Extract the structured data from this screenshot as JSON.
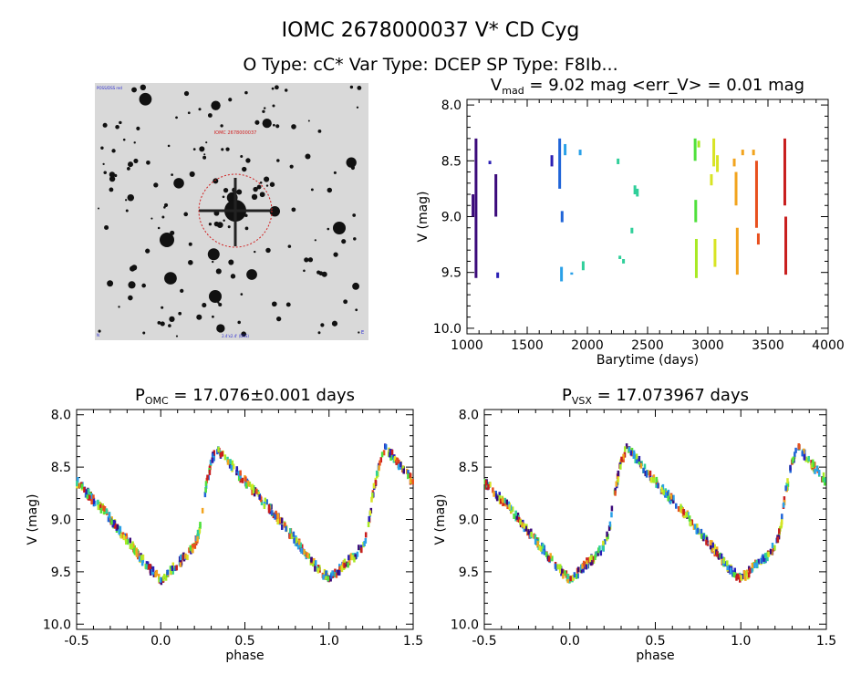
{
  "header": {
    "title": "IOMC 2678000037   V* CD Cyg",
    "subtitle": "O Type: cC*  Var Type: DCEP  SP Type: F8Ib..."
  },
  "finder": {
    "label_top_left": "POSS/DSS red",
    "label_target": "IOMC 2678000037",
    "label_bottom_left": "N",
    "label_bottom_center": "2.4'x2.4' (DSS)",
    "label_bottom_right": "E"
  },
  "colors": {
    "palette": [
      "#3b0a7a",
      "#2a1fb4",
      "#1f64d8",
      "#2aa0e8",
      "#30cf9a",
      "#4fe03c",
      "#a8ea24",
      "#d8e424",
      "#f2a41e",
      "#e8501e",
      "#c81e1e"
    ],
    "circle": "#d02020"
  },
  "chart_data": [
    {
      "type": "scatter",
      "id": "timeseries",
      "title_main": "V",
      "title_sub": "mad",
      "title_rest": " = 9.02 mag <err_V> = 0.01 mag",
      "xlabel": "Barytime (days)",
      "ylabel": "V (mag)",
      "xlim": [
        1000,
        4000
      ],
      "ylim": [
        10.05,
        7.95
      ],
      "y_inverted": true,
      "xticks": [
        1000,
        1500,
        2000,
        2500,
        3000,
        3500,
        4000
      ],
      "yticks": [
        8.0,
        8.5,
        9.0,
        9.5,
        10.0
      ],
      "segments": [
        {
          "x": 1050,
          "y1": 8.8,
          "y2": 9.0,
          "c": 0
        },
        {
          "x": 1075,
          "y1": 8.3,
          "y2": 9.55,
          "c": 0
        },
        {
          "x": 1190,
          "y1": 8.5,
          "y2": 8.53,
          "c": 1
        },
        {
          "x": 1240,
          "y1": 8.62,
          "y2": 9.0,
          "c": 0
        },
        {
          "x": 1255,
          "y1": 9.5,
          "y2": 9.55,
          "c": 1
        },
        {
          "x": 1705,
          "y1": 8.45,
          "y2": 8.55,
          "c": 1
        },
        {
          "x": 1770,
          "y1": 8.3,
          "y2": 8.75,
          "c": 2
        },
        {
          "x": 1785,
          "y1": 9.45,
          "y2": 9.58,
          "c": 3
        },
        {
          "x": 1790,
          "y1": 8.95,
          "y2": 9.05,
          "c": 2
        },
        {
          "x": 1815,
          "y1": 8.35,
          "y2": 8.45,
          "c": 3
        },
        {
          "x": 1870,
          "y1": 9.5,
          "y2": 9.52,
          "c": 3
        },
        {
          "x": 1940,
          "y1": 8.4,
          "y2": 8.45,
          "c": 3
        },
        {
          "x": 1965,
          "y1": 9.4,
          "y2": 9.48,
          "c": 4
        },
        {
          "x": 2255,
          "y1": 8.48,
          "y2": 8.53,
          "c": 4
        },
        {
          "x": 2270,
          "y1": 9.35,
          "y2": 9.38,
          "c": 4
        },
        {
          "x": 2300,
          "y1": 9.38,
          "y2": 9.42,
          "c": 4
        },
        {
          "x": 2370,
          "y1": 9.1,
          "y2": 9.15,
          "c": 4
        },
        {
          "x": 2395,
          "y1": 8.72,
          "y2": 8.8,
          "c": 4
        },
        {
          "x": 2415,
          "y1": 8.75,
          "y2": 8.82,
          "c": 4
        },
        {
          "x": 2895,
          "y1": 8.3,
          "y2": 8.5,
          "c": 5
        },
        {
          "x": 2900,
          "y1": 8.85,
          "y2": 9.05,
          "c": 5
        },
        {
          "x": 2905,
          "y1": 9.2,
          "y2": 9.55,
          "c": 6
        },
        {
          "x": 2925,
          "y1": 8.32,
          "y2": 8.38,
          "c": 6
        },
        {
          "x": 3030,
          "y1": 8.62,
          "y2": 8.72,
          "c": 7
        },
        {
          "x": 3050,
          "y1": 8.3,
          "y2": 8.55,
          "c": 7
        },
        {
          "x": 3060,
          "y1": 9.2,
          "y2": 9.45,
          "c": 7
        },
        {
          "x": 3080,
          "y1": 8.45,
          "y2": 8.6,
          "c": 7
        },
        {
          "x": 3220,
          "y1": 8.48,
          "y2": 8.55,
          "c": 8
        },
        {
          "x": 3235,
          "y1": 8.6,
          "y2": 8.9,
          "c": 8
        },
        {
          "x": 3245,
          "y1": 9.1,
          "y2": 9.52,
          "c": 8
        },
        {
          "x": 3290,
          "y1": 8.4,
          "y2": 8.45,
          "c": 8
        },
        {
          "x": 3380,
          "y1": 8.4,
          "y2": 8.45,
          "c": 8
        },
        {
          "x": 3405,
          "y1": 8.5,
          "y2": 9.1,
          "c": 9
        },
        {
          "x": 3420,
          "y1": 9.15,
          "y2": 9.25,
          "c": 9
        },
        {
          "x": 3640,
          "y1": 8.3,
          "y2": 8.9,
          "c": 10
        },
        {
          "x": 3648,
          "y1": 9.0,
          "y2": 9.52,
          "c": 10
        }
      ]
    },
    {
      "type": "scatter",
      "id": "phase_omc",
      "title_main": "P",
      "title_sub": "OMC",
      "title_rest": " = 17.076±0.001 days",
      "xlabel": "phase",
      "ylabel": "V (mag)",
      "xlim": [
        -0.5,
        1.5
      ],
      "ylim": [
        10.05,
        7.95
      ],
      "y_inverted": true,
      "xticks": [
        -0.5,
        0.0,
        0.5,
        1.0,
        1.5
      ],
      "yticks": [
        8.0,
        8.5,
        9.0,
        9.5,
        10.0
      ],
      "light_curve": {
        "phase": [
          0.0,
          0.05,
          0.1,
          0.15,
          0.2,
          0.23,
          0.26,
          0.3,
          0.33,
          0.38,
          0.45,
          0.55,
          0.65,
          0.75,
          0.85,
          0.92,
          1.0
        ],
        "mag": [
          9.57,
          9.5,
          9.42,
          9.35,
          9.25,
          9.1,
          8.75,
          8.45,
          8.32,
          8.4,
          8.55,
          8.73,
          8.9,
          9.1,
          9.3,
          9.45,
          9.57
        ]
      }
    },
    {
      "type": "scatter",
      "id": "phase_vsx",
      "title_main": "P",
      "title_sub": "VSX",
      "title_rest": " = 17.073967 days",
      "xlabel": "phase",
      "ylabel": "V (mag)",
      "xlim": [
        -0.5,
        1.5
      ],
      "ylim": [
        10.05,
        7.95
      ],
      "y_inverted": true,
      "xticks": [
        -0.5,
        0.0,
        0.5,
        1.0,
        1.5
      ],
      "yticks": [
        8.0,
        8.5,
        9.0,
        9.5,
        10.0
      ],
      "light_curve": {
        "phase": [
          0.0,
          0.05,
          0.1,
          0.15,
          0.2,
          0.23,
          0.26,
          0.3,
          0.33,
          0.38,
          0.45,
          0.55,
          0.65,
          0.75,
          0.85,
          0.92,
          1.0
        ],
        "mag": [
          9.57,
          9.5,
          9.42,
          9.35,
          9.25,
          9.1,
          8.75,
          8.45,
          8.32,
          8.4,
          8.55,
          8.73,
          8.9,
          9.1,
          9.3,
          9.45,
          9.57
        ]
      }
    }
  ]
}
